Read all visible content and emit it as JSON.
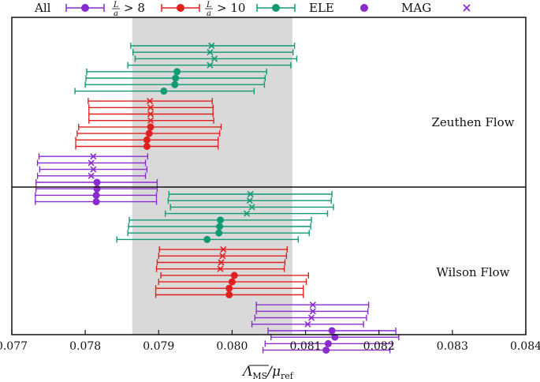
{
  "chart_data": {
    "type": "forest",
    "xlim": [
      0.077,
      0.084
    ],
    "xticks": [
      "0.077",
      "0.078",
      "0.079",
      "0.080",
      "0.081",
      "0.082",
      "0.083",
      "0.084"
    ],
    "xlabel_main": "Λ",
    "xlabel_sub": "MS",
    "xlabel_den": "/μ",
    "xlabel_den_sub": "ref",
    "band": [
      0.07864,
      0.08082
    ],
    "legend": [
      {
        "label": "All",
        "marker": "line-dot",
        "color": "#8a2bd0"
      },
      {
        "label_frac_num": "L",
        "label_frac_den": "a",
        "label_rest": "> 8",
        "marker": "line-dot",
        "color": "#e02020"
      },
      {
        "label_frac_num": "L",
        "label_frac_den": "a",
        "label_rest": "> 10",
        "marker": "line-dot",
        "color": "#109a73"
      },
      {
        "label": "ELE",
        "marker": "dot",
        "color": "#8a2bd0"
      },
      {
        "label": "MAG",
        "marker": "cross",
        "color": "#8a2bd0"
      }
    ],
    "panels": [
      {
        "name": "Zeuthen Flow",
        "series": [
          {
            "group": "L/a > 10",
            "color": "#109a73",
            "marker": "cross",
            "points": [
              [
                0.07972,
                0.07862,
                0.08085
              ],
              [
                0.0797,
                0.07865,
                0.08083
              ],
              [
                0.07976,
                0.07868,
                0.08088
              ],
              [
                0.0797,
                0.07858,
                0.0808
              ]
            ]
          },
          {
            "group": "L/a > 10",
            "color": "#109a73",
            "marker": "dot",
            "points": [
              [
                0.07925,
                0.07802,
                0.08047
              ],
              [
                0.07923,
                0.07801,
                0.08045
              ],
              [
                0.07922,
                0.078,
                0.08044
              ],
              [
                0.07907,
                0.07786,
                0.0803
              ]
            ]
          },
          {
            "group": "L/a > 8",
            "color": "#e02020",
            "marker": "cross",
            "points": [
              [
                0.07888,
                0.07804,
                0.07973
              ],
              [
                0.07889,
                0.07805,
                0.07974
              ],
              [
                0.07889,
                0.07805,
                0.07974
              ],
              [
                0.07889,
                0.07805,
                0.07975
              ]
            ]
          },
          {
            "group": "L/a > 8",
            "color": "#e02020",
            "marker": "dot",
            "points": [
              [
                0.07889,
                0.07791,
                0.07985
              ],
              [
                0.07887,
                0.07789,
                0.07983
              ],
              [
                0.07884,
                0.07787,
                0.07981
              ],
              [
                0.07884,
                0.07787,
                0.07981
              ]
            ]
          },
          {
            "group": "All",
            "color": "#8a2bd0",
            "marker": "cross",
            "points": [
              [
                0.07811,
                0.07737,
                0.07885
              ],
              [
                0.07808,
                0.07735,
                0.07882
              ],
              [
                0.07811,
                0.07738,
                0.07884
              ],
              [
                0.07808,
                0.07735,
                0.07882
              ]
            ]
          },
          {
            "group": "All",
            "color": "#8a2bd0",
            "marker": "dot",
            "points": [
              [
                0.07816,
                0.07733,
                0.07898
              ],
              [
                0.07816,
                0.07733,
                0.07898
              ],
              [
                0.07815,
                0.07732,
                0.07897
              ],
              [
                0.07815,
                0.07732,
                0.07897
              ]
            ]
          }
        ]
      },
      {
        "name": "Wilson Flow",
        "series": [
          {
            "group": "L/a > 10",
            "color": "#109a73",
            "marker": "cross",
            "points": [
              [
                0.08025,
                0.07914,
                0.08136
              ],
              [
                0.08024,
                0.07913,
                0.08135
              ],
              [
                0.08027,
                0.07916,
                0.08138
              ],
              [
                0.0802,
                0.07909,
                0.0813
              ]
            ]
          },
          {
            "group": "L/a > 10",
            "color": "#109a73",
            "marker": "dot",
            "points": [
              [
                0.07984,
                0.0786,
                0.08108
              ],
              [
                0.07983,
                0.07859,
                0.08107
              ],
              [
                0.07982,
                0.07858,
                0.08105
              ],
              [
                0.07966,
                0.07843,
                0.0809
              ]
            ]
          },
          {
            "group": "L/a > 8",
            "color": "#e02020",
            "marker": "cross",
            "points": [
              [
                0.07988,
                0.07901,
                0.08075
              ],
              [
                0.07987,
                0.079,
                0.08074
              ],
              [
                0.07985,
                0.07898,
                0.08072
              ],
              [
                0.07984,
                0.07897,
                0.08071
              ]
            ]
          },
          {
            "group": "L/a > 8",
            "color": "#e02020",
            "marker": "dot",
            "points": [
              [
                0.08003,
                0.07903,
                0.08104
              ],
              [
                0.08,
                0.079,
                0.08101
              ],
              [
                0.07996,
                0.07896,
                0.08097
              ],
              [
                0.07996,
                0.07896,
                0.08097
              ]
            ]
          },
          {
            "group": "All",
            "color": "#8a2bd0",
            "marker": "cross",
            "points": [
              [
                0.0811,
                0.08033,
                0.08186
              ],
              [
                0.0811,
                0.08033,
                0.08185
              ],
              [
                0.08108,
                0.08031,
                0.08183
              ],
              [
                0.08103,
                0.08027,
                0.08179
              ]
            ]
          },
          {
            "group": "All",
            "color": "#8a2bd0",
            "marker": "dot",
            "points": [
              [
                0.08136,
                0.08049,
                0.08223
              ],
              [
                0.0814,
                0.08053,
                0.08227
              ],
              [
                0.08131,
                0.08045,
                0.08218
              ],
              [
                0.08128,
                0.08042,
                0.08215
              ]
            ]
          }
        ]
      }
    ]
  }
}
